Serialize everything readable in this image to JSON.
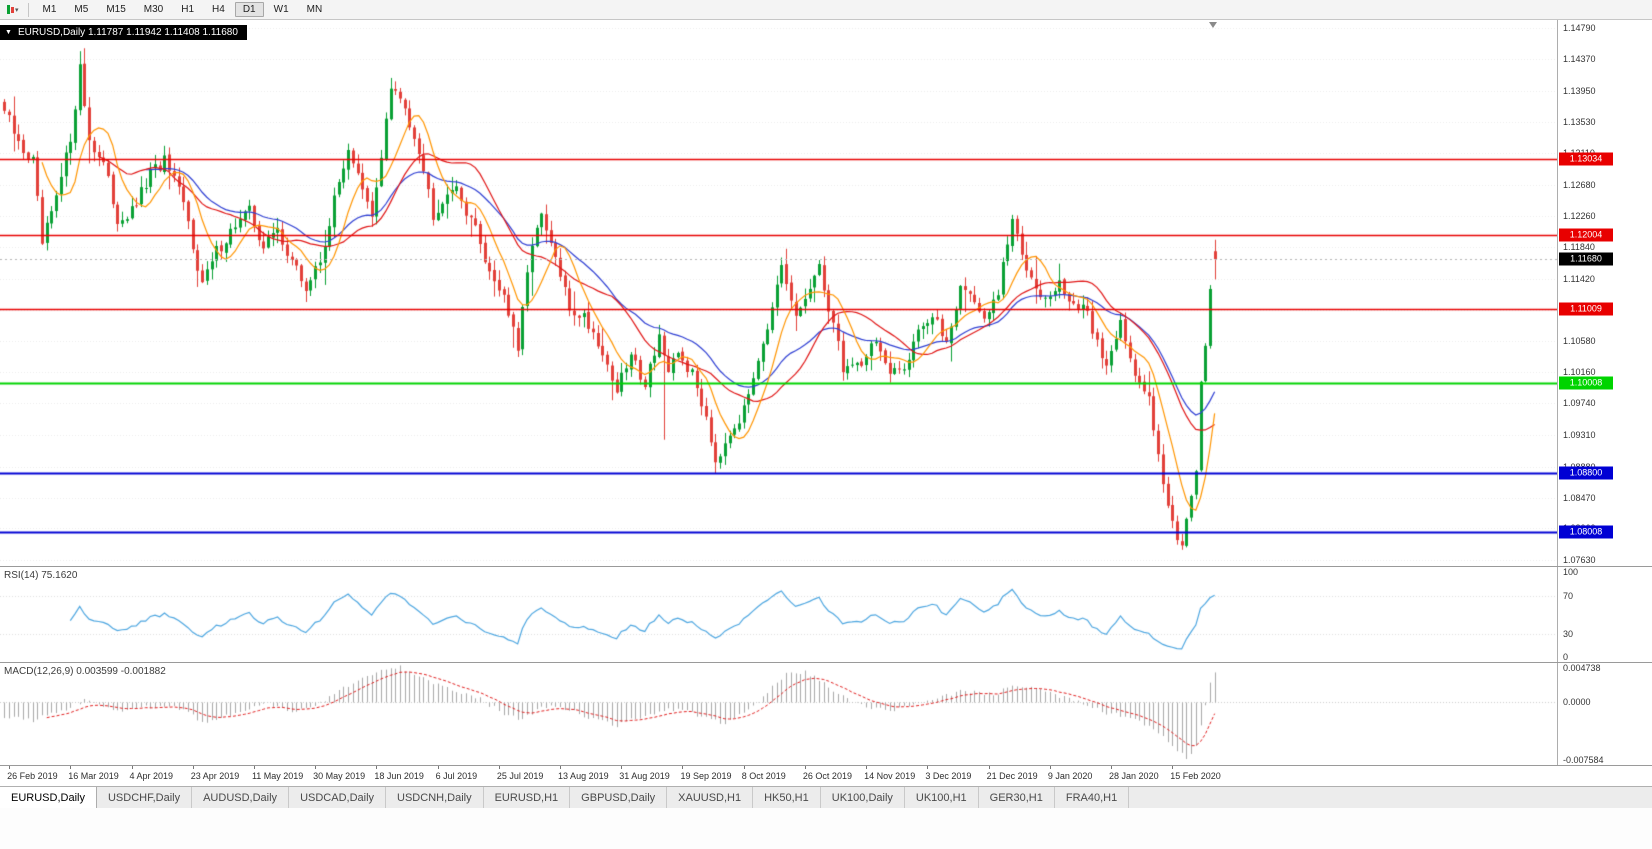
{
  "toolbar": {
    "timeframes": [
      "M1",
      "M5",
      "M15",
      "M30",
      "H1",
      "H4",
      "D1",
      "W1",
      "MN"
    ],
    "active_timeframe": "D1",
    "new_chart_icon": "new-chart-dropdown"
  },
  "chart_header": {
    "symbol": "EURUSD,Daily",
    "open": "1.11787",
    "high": "1.11942",
    "low": "1.11408",
    "close": "1.11680",
    "title_text": "EURUSD,Daily  1.11787 1.11942 1.11408 1.11680"
  },
  "price_axis": {
    "labels": [
      "1.14790",
      "1.14370",
      "1.13950",
      "1.13530",
      "1.13110",
      "1.12680",
      "1.12260",
      "1.11840",
      "1.11420",
      "1.11000",
      "1.10580",
      "1.10160",
      "1.09740",
      "1.09310",
      "1.08880",
      "1.08470",
      "1.08060",
      "1.07630"
    ]
  },
  "hlines": [
    {
      "price": 1.13034,
      "label": "1.13034",
      "color": "#e80000",
      "width": 1.4
    },
    {
      "price": 1.12004,
      "label": "1.12004",
      "color": "#e80000",
      "width": 1.4
    },
    {
      "price": 1.11009,
      "label": "1.11009",
      "color": "#e80000",
      "width": 1.4
    },
    {
      "price": 1.10008,
      "label": "1.10008",
      "color": "#00d400",
      "width": 2
    },
    {
      "price": 1.088,
      "label": "1.08800",
      "color": "#0000d4",
      "width": 2
    },
    {
      "price": 1.08008,
      "label": "1.08008",
      "color": "#0000d4",
      "width": 2
    }
  ],
  "current_price": {
    "value": 1.1168,
    "label": "1.11680",
    "tag_bg": "#000000"
  },
  "date_axis": [
    "26 Feb 2019",
    "16 Mar 2019",
    "4 Apr 2019",
    "23 Apr 2019",
    "11 May 2019",
    "30 May 2019",
    "18 Jun 2019",
    "6 Jul 2019",
    "25 Jul 2019",
    "13 Aug 2019",
    "31 Aug 2019",
    "19 Sep 2019",
    "8 Oct 2019",
    "26 Oct 2019",
    "14 Nov 2019",
    "3 Dec 2019",
    "21 Dec 2019",
    "9 Jan 2020",
    "28 Jan 2020",
    "15 Feb 2020"
  ],
  "rsi_panel": {
    "label": "RSI(14) 75.1620",
    "last_value": 75.162,
    "axis_labels": [
      "100",
      "70",
      "30",
      "0"
    ],
    "axis_values": [
      100,
      70,
      30,
      0
    ],
    "line_color": "#4da6e0"
  },
  "macd_panel": {
    "label": "MACD(12,26,9) 0.003599 -0.001882",
    "macd_value": 0.003599,
    "signal_value": -0.001882,
    "axis_labels": [
      "0.004738",
      "0.0000",
      "-0.007584"
    ],
    "axis_values": [
      0.004738,
      0,
      -0.007584
    ]
  },
  "bottom_tabs": {
    "active": "EURUSD,Daily",
    "tabs": [
      "EURUSD,Daily",
      "USDCHF,Daily",
      "AUDUSD,Daily",
      "USDCAD,Daily",
      "USDCNH,Daily",
      "EURUSD,H1",
      "GBPUSD,Daily",
      "XAUUSD,H1",
      "HK50,H1",
      "UK100,Daily",
      "UK100,H1",
      "GER30,H1",
      "FRA40,H1"
    ],
    "bar_color": "#ececec"
  },
  "chart_data": {
    "type": "candlestick",
    "symbol": "EURUSD",
    "timeframe": "Daily",
    "bars": 258,
    "up_color": "#0aa134",
    "down_color": "#e2403a",
    "price_range": {
      "min": 1.0755,
      "max": 1.149
    },
    "last_bar_ohlc": {
      "open": 1.11787,
      "high": 1.11942,
      "low": 1.11408,
      "close": 1.1168
    },
    "close_anchors": [
      [
        0,
        1.1368
      ],
      [
        3,
        1.1322
      ],
      [
        6,
        1.13
      ],
      [
        8,
        1.1188
      ],
      [
        11,
        1.1248
      ],
      [
        14,
        1.1332
      ],
      [
        16,
        1.1425
      ],
      [
        18,
        1.133
      ],
      [
        21,
        1.1295
      ],
      [
        24,
        1.1222
      ],
      [
        27,
        1.123
      ],
      [
        31,
        1.1282
      ],
      [
        34,
        1.13
      ],
      [
        38,
        1.1242
      ],
      [
        42,
        1.1135
      ],
      [
        45,
        1.1178
      ],
      [
        49,
        1.1215
      ],
      [
        52,
        1.1232
      ],
      [
        55,
        1.1185
      ],
      [
        58,
        1.1208
      ],
      [
        61,
        1.1165
      ],
      [
        64,
        1.1128
      ],
      [
        67,
        1.1165
      ],
      [
        70,
        1.1245
      ],
      [
        73,
        1.132
      ],
      [
        76,
        1.1258
      ],
      [
        78,
        1.1222
      ],
      [
        82,
        1.1398
      ],
      [
        85,
        1.1372
      ],
      [
        88,
        1.1318
      ],
      [
        91,
        1.123
      ],
      [
        95,
        1.1268
      ],
      [
        99,
        1.1225
      ],
      [
        103,
        1.1152
      ],
      [
        106,
        1.112
      ],
      [
        109,
        1.1045
      ],
      [
        112,
        1.1195
      ],
      [
        114,
        1.1222
      ],
      [
        117,
        1.1168
      ],
      [
        120,
        1.11
      ],
      [
        123,
        1.1092
      ],
      [
        126,
        1.1058
      ],
      [
        130,
        1.0992
      ],
      [
        133,
        1.1038
      ],
      [
        136,
        1.1002
      ],
      [
        139,
        1.1068
      ],
      [
        141,
        1.1008
      ],
      [
        143,
        1.1042
      ],
      [
        146,
        1.1012
      ],
      [
        149,
        1.0958
      ],
      [
        151,
        1.0898
      ],
      [
        154,
        1.0938
      ],
      [
        157,
        1.0962
      ],
      [
        160,
        1.104
      ],
      [
        163,
        1.1098
      ],
      [
        165,
        1.1152
      ],
      [
        168,
        1.1088
      ],
      [
        171,
        1.113
      ],
      [
        173,
        1.1152
      ],
      [
        176,
        1.1082
      ],
      [
        178,
        1.1022
      ],
      [
        182,
        1.103
      ],
      [
        185,
        1.1062
      ],
      [
        188,
        1.1008
      ],
      [
        191,
        1.1022
      ],
      [
        194,
        1.1078
      ],
      [
        197,
        1.1088
      ],
      [
        200,
        1.1058
      ],
      [
        203,
        1.1132
      ],
      [
        206,
        1.1115
      ],
      [
        208,
        1.1082
      ],
      [
        211,
        1.1122
      ],
      [
        214,
        1.1222
      ],
      [
        216,
        1.1172
      ],
      [
        219,
        1.1138
      ],
      [
        221,
        1.1112
      ],
      [
        224,
        1.1132
      ],
      [
        227,
        1.1108
      ],
      [
        230,
        1.1092
      ],
      [
        234,
        1.1022
      ],
      [
        237,
        1.1092
      ],
      [
        240,
        1.1005
      ],
      [
        243,
        1.0982
      ],
      [
        245,
        1.0912
      ],
      [
        247,
        1.0832
      ],
      [
        249,
        1.0795
      ],
      [
        250,
        1.0788
      ],
      [
        252,
        1.0852
      ],
      [
        253,
        1.0882
      ],
      [
        254,
        1.1
      ],
      [
        255,
        1.1048
      ],
      [
        256,
        1.113
      ],
      [
        257,
        1.1168
      ]
    ],
    "wick_overrides": {
      "high": [
        [
          16,
          1.1448
        ],
        [
          82,
          1.1412
        ]
      ],
      "low": [
        [
          140,
          1.0925
        ],
        [
          151,
          1.0879
        ],
        [
          250,
          1.0778
        ]
      ]
    },
    "moving_averages": [
      {
        "period": 30,
        "type": "ema",
        "color": "#2f3fd3"
      },
      {
        "period": 20,
        "type": "sma",
        "color": "#e01515"
      },
      {
        "period": 8,
        "type": "sma",
        "color": "#ff9500"
      }
    ],
    "rsi": {
      "period": 14,
      "color": "#4da6e0",
      "levels": [
        70,
        30
      ]
    },
    "macd": {
      "fast": 12,
      "slow": 26,
      "signal": 9,
      "histogram_color": "#a8a8a8",
      "signal_color": "#e02020",
      "range": {
        "min": -0.007584,
        "max": 0.004738
      },
      "anchors": [
        [
          0,
          -0.0018
        ],
        [
          6,
          -0.0022
        ],
        [
          12,
          -0.001
        ],
        [
          18,
          0.0004
        ],
        [
          24,
          -0.0012
        ],
        [
          30,
          -0.0006
        ],
        [
          36,
          -0.0004
        ],
        [
          43,
          -0.0026
        ],
        [
          50,
          -0.001
        ],
        [
          56,
          -0.0002
        ],
        [
          62,
          -0.0012
        ],
        [
          68,
          0.0002
        ],
        [
          74,
          0.0024
        ],
        [
          80,
          0.0038
        ],
        [
          84,
          0.0042
        ],
        [
          90,
          0.0026
        ],
        [
          96,
          0.0012
        ],
        [
          101,
          0.0004
        ],
        [
          106,
          -0.0014
        ],
        [
          110,
          -0.0022
        ],
        [
          114,
          -0.0004
        ],
        [
          118,
          -0.0006
        ],
        [
          124,
          -0.0018
        ],
        [
          130,
          -0.0028
        ],
        [
          136,
          -0.0016
        ],
        [
          140,
          -0.001
        ],
        [
          144,
          -0.0008
        ],
        [
          149,
          -0.002
        ],
        [
          153,
          -0.0026
        ],
        [
          158,
          -0.001
        ],
        [
          162,
          0.0012
        ],
        [
          166,
          0.0034
        ],
        [
          170,
          0.0036
        ],
        [
          174,
          0.0024
        ],
        [
          178,
          0.0006
        ],
        [
          183,
          -0.0006
        ],
        [
          188,
          -0.001
        ],
        [
          193,
          -0.0004
        ],
        [
          198,
          0.0004
        ],
        [
          203,
          0.0014
        ],
        [
          207,
          0.0012
        ],
        [
          210,
          0.0008
        ],
        [
          214,
          0.0022
        ],
        [
          218,
          0.0018
        ],
        [
          222,
          0.001
        ],
        [
          226,
          0.0004
        ],
        [
          230,
          -0.0004
        ],
        [
          234,
          -0.0014
        ],
        [
          238,
          -0.0016
        ],
        [
          242,
          -0.0026
        ],
        [
          245,
          -0.0038
        ],
        [
          247,
          -0.0048
        ],
        [
          250,
          -0.0063
        ],
        [
          251,
          -0.0068
        ],
        [
          253,
          -0.0055
        ],
        [
          254,
          -0.003
        ],
        [
          255,
          -0.0005
        ],
        [
          256,
          0.0025
        ],
        [
          257,
          0.0036
        ]
      ]
    }
  }
}
